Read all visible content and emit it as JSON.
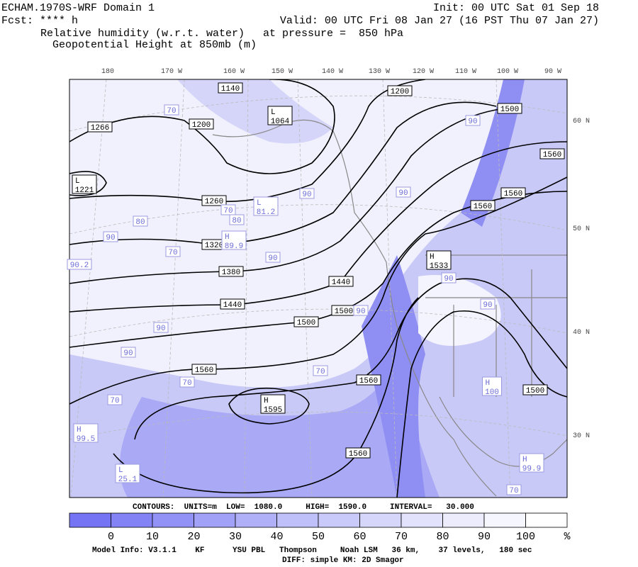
{
  "header": {
    "left": [
      "ECHAM.1970S-WRF Domain 1",
      "Fcst: **** h",
      "Relative humidity (w.r.t. water)",
      "Geopotential Height at 850mb (m)"
    ],
    "right": [
      "Init: 00 UTC Sat 01 Sep 18",
      "Valid: 00 UTC Fri 08 Jan 27 (16 PST Thu 07 Jan 27)",
      "at pressure =  850 hPa"
    ]
  },
  "map": {
    "longitude_labels": [
      "180",
      "170 W",
      "160 W",
      "150 W",
      "140 W",
      "130 W",
      "120 W",
      "110 W",
      "100 W",
      "90 W"
    ],
    "latitude_labels": [
      "60 N",
      "50 N",
      "40 N",
      "30 N"
    ],
    "height_labels": [
      {
        "text": "1140"
      },
      {
        "mark": "L",
        "text": "1064"
      },
      {
        "text": "1200"
      },
      {
        "text": "1266"
      },
      {
        "text": "1200"
      },
      {
        "text": "1500"
      },
      {
        "text": "1560"
      },
      {
        "mark": "L",
        "text": "1221"
      },
      {
        "text": "1560"
      },
      {
        "text": "1560"
      },
      {
        "text": "1260"
      },
      {
        "text": "1320"
      },
      {
        "mark": "H",
        "text": "1533"
      },
      {
        "text": "1380"
      },
      {
        "text": "1440"
      },
      {
        "text": "1440"
      },
      {
        "text": "1500"
      },
      {
        "text": "1500"
      },
      {
        "text": "1560"
      },
      {
        "text": "1560"
      },
      {
        "mark": "H",
        "text": "1595"
      },
      {
        "text": "1500"
      },
      {
        "text": "1560"
      }
    ],
    "rh_labels": [
      {
        "text": "70"
      },
      {
        "text": "90"
      },
      {
        "text": "90"
      },
      {
        "text": "90"
      },
      {
        "text": "70"
      },
      {
        "mark": "L",
        "text": "81.2"
      },
      {
        "text": "80"
      },
      {
        "text": "90"
      },
      {
        "text": "80"
      },
      {
        "mark": "H",
        "text": "89.9"
      },
      {
        "text": "70"
      },
      {
        "text": "90"
      },
      {
        "text": "90.2"
      },
      {
        "text": "90"
      },
      {
        "text": "90"
      },
      {
        "text": "90"
      },
      {
        "text": "90"
      },
      {
        "text": "70"
      },
      {
        "text": "70"
      },
      {
        "mark": "H",
        "text": "100"
      },
      {
        "text": "70"
      },
      {
        "mark": "H",
        "text": "99.5"
      },
      {
        "mark": "L",
        "text": "25.1"
      },
      {
        "mark": "H",
        "text": "99.9"
      },
      {
        "text": "70"
      },
      {
        "text": "90"
      }
    ]
  },
  "colorbar": {
    "ticks": [
      "0",
      "10",
      "20",
      "30",
      "40",
      "50",
      "60",
      "70",
      "80",
      "90",
      "100"
    ],
    "unit": "%",
    "colors": [
      "#7474f4",
      "#8383f5",
      "#9292f6",
      "#a1a1f7",
      "#b0b0f8",
      "#bfbff9",
      "#cacafa",
      "#d6d6fb",
      "#e2e2fc",
      "#ececfd",
      "#f6f6fe",
      "#ffffff"
    ]
  },
  "footer": {
    "contours": "CONTOURS:  UNITS=m  LOW=  1080.0     HIGH=  1590.0     INTERVAL=   30.000",
    "model_info": "Model Info: V3.1.1    KF      YSU PBL   Thompson     Noah LSM   36 km,    37 levels,   180 sec",
    "diff": "DIFF: simple KM: 2D Smagor"
  }
}
